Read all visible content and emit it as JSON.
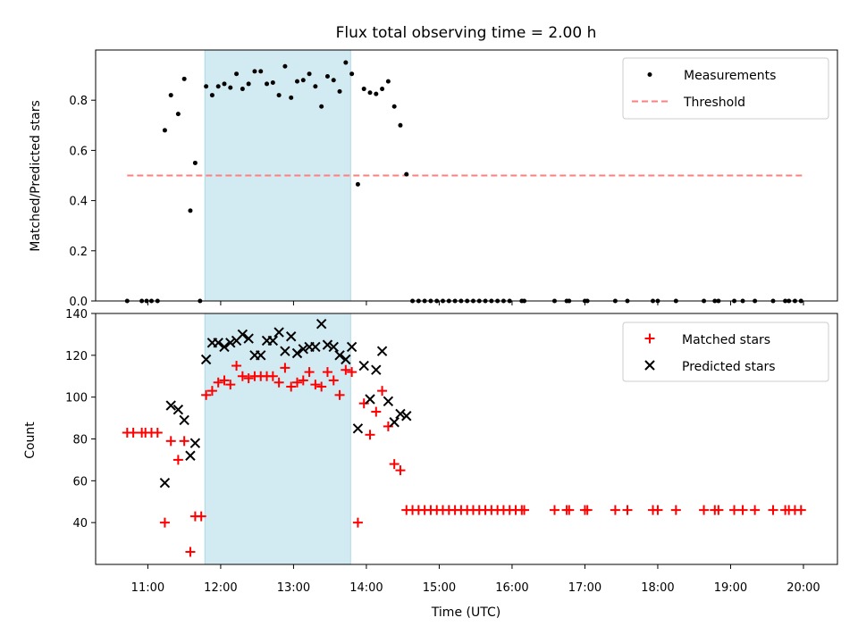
{
  "title": "Flux total observing time = 2.00 h",
  "xlabel": "Time (UTC)",
  "x_ticks": [
    "11:00",
    "12:00",
    "13:00",
    "14:00",
    "15:00",
    "16:00",
    "17:00",
    "18:00",
    "19:00",
    "20:00"
  ],
  "colors": {
    "measurement": "#000000",
    "threshold": "#ff7f7f",
    "matched": "#ff0000",
    "predicted": "#000000",
    "highlight": "#add8e6"
  },
  "chart_data": [
    {
      "type": "scatter",
      "ylabel": "Matched/Predicted stars",
      "xlim": [
        "10:17",
        "20:28"
      ],
      "ylim": [
        0,
        1.0
      ],
      "y_ticks": [
        "0.0",
        "0.2",
        "0.4",
        "0.6",
        "0.8"
      ],
      "y_tick_values": [
        0,
        0.2,
        0.4,
        0.6,
        0.8
      ],
      "highlight_span": [
        "11:47",
        "13:47"
      ],
      "legend": [
        "Measurements",
        "Threshold"
      ],
      "legend_location": "upper right",
      "threshold": {
        "name": "Threshold",
        "value": 0.5,
        "x": [
          "10:43",
          "20:00"
        ]
      },
      "series": [
        {
          "name": "Measurements",
          "marker": "dot",
          "points": [
            [
              "10:43",
              0
            ],
            [
              "10:55",
              0
            ],
            [
              "10:59",
              0
            ],
            [
              "11:03",
              0
            ],
            [
              "11:08",
              0
            ],
            [
              "11:14",
              0.68
            ],
            [
              "11:19",
              0.82
            ],
            [
              "11:25",
              0.745
            ],
            [
              "11:30",
              0.885
            ],
            [
              "11:35",
              0.36
            ],
            [
              "11:39",
              0.55
            ],
            [
              "11:43",
              0
            ],
            [
              "11:48",
              0.855
            ],
            [
              "11:53",
              0.82
            ],
            [
              "11:58",
              0.855
            ],
            [
              "12:03",
              0.865
            ],
            [
              "12:08",
              0.85
            ],
            [
              "12:13",
              0.905
            ],
            [
              "12:18",
              0.845
            ],
            [
              "12:23",
              0.865
            ],
            [
              "12:28",
              0.915
            ],
            [
              "12:33",
              0.915
            ],
            [
              "12:38",
              0.865
            ],
            [
              "12:43",
              0.87
            ],
            [
              "12:48",
              0.82
            ],
            [
              "12:53",
              0.935
            ],
            [
              "12:58",
              0.81
            ],
            [
              "13:03",
              0.875
            ],
            [
              "13:08",
              0.88
            ],
            [
              "13:13",
              0.905
            ],
            [
              "13:18",
              0.855
            ],
            [
              "13:23",
              0.775
            ],
            [
              "13:28",
              0.895
            ],
            [
              "13:33",
              0.88
            ],
            [
              "13:38",
              0.835
            ],
            [
              "13:43",
              0.95
            ],
            [
              "13:48",
              0.905
            ],
            [
              "13:53",
              0.465
            ],
            [
              "13:58",
              0.845
            ],
            [
              "14:03",
              0.83
            ],
            [
              "14:08",
              0.825
            ],
            [
              "14:13",
              0.845
            ],
            [
              "14:18",
              0.875
            ],
            [
              "14:23",
              0.775
            ],
            [
              "14:28",
              0.7
            ],
            [
              "14:33",
              0.505
            ],
            [
              "14:38",
              0
            ],
            [
              "14:43",
              0
            ],
            [
              "14:48",
              0
            ],
            [
              "14:53",
              0
            ],
            [
              "14:58",
              0
            ],
            [
              "15:03",
              0
            ],
            [
              "15:08",
              0
            ],
            [
              "15:13",
              0
            ],
            [
              "15:18",
              0
            ],
            [
              "15:23",
              0
            ],
            [
              "15:28",
              0
            ],
            [
              "15:33",
              0
            ],
            [
              "15:38",
              0
            ],
            [
              "15:43",
              0
            ],
            [
              "15:48",
              0
            ],
            [
              "15:53",
              0
            ],
            [
              "15:58",
              0
            ],
            [
              "16:08",
              0
            ],
            [
              "16:10",
              0
            ],
            [
              "16:35",
              0
            ],
            [
              "16:45",
              0
            ],
            [
              "16:47",
              0
            ],
            [
              "17:00",
              0
            ],
            [
              "17:02",
              0
            ],
            [
              "17:25",
              0
            ],
            [
              "17:35",
              0
            ],
            [
              "17:56",
              0
            ],
            [
              "18:00",
              0
            ],
            [
              "18:15",
              0
            ],
            [
              "18:38",
              0
            ],
            [
              "18:47",
              0
            ],
            [
              "18:50",
              0
            ],
            [
              "19:03",
              0
            ],
            [
              "19:10",
              0
            ],
            [
              "19:20",
              0
            ],
            [
              "19:35",
              0
            ],
            [
              "19:45",
              0
            ],
            [
              "19:48",
              0
            ],
            [
              "19:53",
              0
            ],
            [
              "19:58",
              0
            ]
          ]
        }
      ]
    },
    {
      "type": "scatter",
      "ylabel": "Count",
      "xlabel": "Time (UTC)",
      "xlim": [
        "10:17",
        "20:28"
      ],
      "ylim": [
        20,
        140
      ],
      "y_ticks": [
        "40",
        "60",
        "80",
        "100",
        "120",
        "140"
      ],
      "y_tick_values": [
        40,
        60,
        80,
        100,
        120,
        140
      ],
      "highlight_span": [
        "11:47",
        "13:47"
      ],
      "legend": [
        "Matched stars",
        "Predicted stars"
      ],
      "legend_location": "upper right",
      "series": [
        {
          "name": "Matched stars",
          "marker": "plus",
          "points": [
            [
              "10:43",
              83
            ],
            [
              "10:48",
              83
            ],
            [
              "10:55",
              83
            ],
            [
              "10:58",
              83
            ],
            [
              "11:03",
              83
            ],
            [
              "11:08",
              83
            ],
            [
              "11:14",
              40
            ],
            [
              "11:19",
              79
            ],
            [
              "11:25",
              70
            ],
            [
              "11:30",
              79
            ],
            [
              "11:35",
              26
            ],
            [
              "11:39",
              43
            ],
            [
              "11:44",
              43
            ],
            [
              "11:48",
              101
            ],
            [
              "11:53",
              103
            ],
            [
              "11:58",
              107
            ],
            [
              "12:03",
              108
            ],
            [
              "12:08",
              106
            ],
            [
              "12:13",
              115
            ],
            [
              "12:18",
              110
            ],
            [
              "12:23",
              109
            ],
            [
              "12:28",
              110
            ],
            [
              "12:33",
              110
            ],
            [
              "12:38",
              110
            ],
            [
              "12:43",
              110
            ],
            [
              "12:48",
              107
            ],
            [
              "12:53",
              114
            ],
            [
              "12:58",
              105
            ],
            [
              "13:03",
              107
            ],
            [
              "13:08",
              108
            ],
            [
              "13:13",
              112
            ],
            [
              "13:18",
              106
            ],
            [
              "13:23",
              105
            ],
            [
              "13:28",
              112
            ],
            [
              "13:33",
              108
            ],
            [
              "13:38",
              101
            ],
            [
              "13:43",
              113
            ],
            [
              "13:48",
              112
            ],
            [
              "13:53",
              40
            ],
            [
              "13:58",
              97
            ],
            [
              "14:03",
              82
            ],
            [
              "14:08",
              93
            ],
            [
              "14:13",
              103
            ],
            [
              "14:18",
              86
            ],
            [
              "14:23",
              68
            ],
            [
              "14:28",
              65
            ],
            [
              "14:33",
              46
            ],
            [
              "14:38",
              46
            ],
            [
              "14:43",
              46
            ],
            [
              "14:48",
              46
            ],
            [
              "14:53",
              46
            ],
            [
              "14:58",
              46
            ],
            [
              "15:03",
              46
            ],
            [
              "15:08",
              46
            ],
            [
              "15:13",
              46
            ],
            [
              "15:18",
              46
            ],
            [
              "15:23",
              46
            ],
            [
              "15:28",
              46
            ],
            [
              "15:33",
              46
            ],
            [
              "15:38",
              46
            ],
            [
              "15:43",
              46
            ],
            [
              "15:48",
              46
            ],
            [
              "15:53",
              46
            ],
            [
              "15:58",
              46
            ],
            [
              "16:03",
              46
            ],
            [
              "16:08",
              46
            ],
            [
              "16:10",
              46
            ],
            [
              "16:35",
              46
            ],
            [
              "16:45",
              46
            ],
            [
              "16:47",
              46
            ],
            [
              "17:00",
              46
            ],
            [
              "17:02",
              46
            ],
            [
              "17:25",
              46
            ],
            [
              "17:35",
              46
            ],
            [
              "17:56",
              46
            ],
            [
              "18:00",
              46
            ],
            [
              "18:15",
              46
            ],
            [
              "18:38",
              46
            ],
            [
              "18:47",
              46
            ],
            [
              "18:50",
              46
            ],
            [
              "19:03",
              46
            ],
            [
              "19:10",
              46
            ],
            [
              "19:20",
              46
            ],
            [
              "19:35",
              46
            ],
            [
              "19:45",
              46
            ],
            [
              "19:48",
              46
            ],
            [
              "19:53",
              46
            ],
            [
              "19:58",
              46
            ]
          ]
        },
        {
          "name": "Predicted stars",
          "marker": "x",
          "points": [
            [
              "11:14",
              59
            ],
            [
              "11:19",
              96
            ],
            [
              "11:25",
              94
            ],
            [
              "11:30",
              89
            ],
            [
              "11:35",
              72
            ],
            [
              "11:39",
              78
            ],
            [
              "11:48",
              118
            ],
            [
              "11:53",
              126
            ],
            [
              "11:58",
              126
            ],
            [
              "12:03",
              124
            ],
            [
              "12:08",
              126
            ],
            [
              "12:13",
              127
            ],
            [
              "12:18",
              130
            ],
            [
              "12:23",
              128
            ],
            [
              "12:28",
              120
            ],
            [
              "12:33",
              120
            ],
            [
              "12:38",
              127
            ],
            [
              "12:43",
              127
            ],
            [
              "12:48",
              131
            ],
            [
              "12:53",
              122
            ],
            [
              "12:58",
              129
            ],
            [
              "13:03",
              121
            ],
            [
              "13:08",
              123
            ],
            [
              "13:13",
              124
            ],
            [
              "13:18",
              124
            ],
            [
              "13:23",
              135
            ],
            [
              "13:28",
              125
            ],
            [
              "13:33",
              124
            ],
            [
              "13:38",
              120
            ],
            [
              "13:43",
              118
            ],
            [
              "13:48",
              124
            ],
            [
              "13:53",
              85
            ],
            [
              "13:58",
              115
            ],
            [
              "14:03",
              99
            ],
            [
              "14:08",
              113
            ],
            [
              "14:13",
              122
            ],
            [
              "14:18",
              98
            ],
            [
              "14:23",
              88
            ],
            [
              "14:28",
              92
            ],
            [
              "14:33",
              91
            ]
          ]
        }
      ]
    }
  ]
}
